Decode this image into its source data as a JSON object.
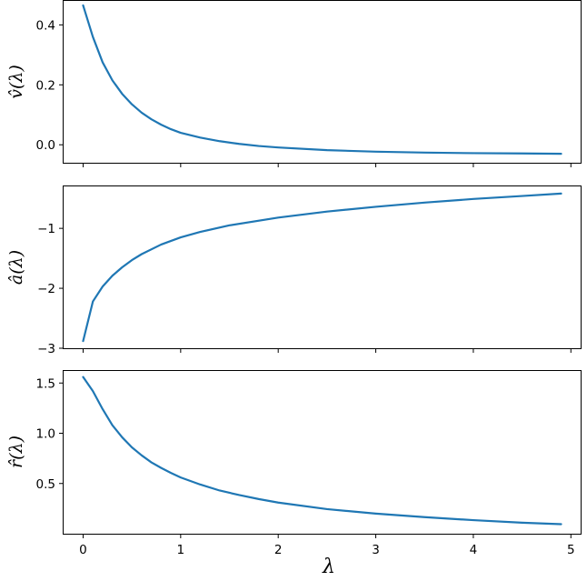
{
  "colors": {
    "series": "#1f77b4",
    "axes": "#000000",
    "background": "#ffffff"
  },
  "chart_data": [
    {
      "type": "line",
      "title": "",
      "xlabel": "",
      "ylabel": "v̂(λ)",
      "xlim": [
        -0.2,
        5.1
      ],
      "ylim": [
        -0.06,
        0.48
      ],
      "grid": false,
      "xticks": [
        0,
        1,
        2,
        3,
        4,
        5
      ],
      "xtick_labels": [],
      "yticks": [
        0.0,
        0.2,
        0.4
      ],
      "ytick_labels": [
        "0.0",
        "0.2",
        "0.4"
      ],
      "series": [
        {
          "x": [
            0,
            0.1,
            0.2,
            0.3,
            0.4,
            0.5,
            0.6,
            0.7,
            0.8,
            0.9,
            1.0,
            1.2,
            1.4,
            1.6,
            1.8,
            2.0,
            2.5,
            3.0,
            3.5,
            4.0,
            4.5,
            4.9
          ],
          "values": [
            0.465,
            0.36,
            0.275,
            0.215,
            0.17,
            0.135,
            0.107,
            0.085,
            0.067,
            0.052,
            0.04,
            0.024,
            0.012,
            0.003,
            -0.004,
            -0.009,
            -0.018,
            -0.023,
            -0.026,
            -0.028,
            -0.029,
            -0.03
          ]
        }
      ]
    },
    {
      "type": "line",
      "title": "",
      "xlabel": "",
      "ylabel": "â(λ)",
      "xlim": [
        -0.2,
        5.1
      ],
      "ylim": [
        -3.0,
        -0.3
      ],
      "grid": false,
      "xticks": [
        0,
        1,
        2,
        3,
        4,
        5
      ],
      "xtick_labels": [],
      "yticks": [
        -3,
        -2,
        -1
      ],
      "ytick_labels": [
        "−3",
        "−2",
        "−1"
      ],
      "series": [
        {
          "x": [
            0,
            0.1,
            0.2,
            0.3,
            0.4,
            0.5,
            0.6,
            0.8,
            1.0,
            1.2,
            1.5,
            2.0,
            2.5,
            3.0,
            3.5,
            4.0,
            4.5,
            4.9
          ],
          "values": [
            -2.88,
            -2.22,
            -1.97,
            -1.79,
            -1.65,
            -1.53,
            -1.43,
            -1.27,
            -1.15,
            -1.06,
            -0.95,
            -0.82,
            -0.72,
            -0.64,
            -0.57,
            -0.51,
            -0.46,
            -0.42
          ]
        }
      ]
    },
    {
      "type": "line",
      "title": "",
      "xlabel": "λ",
      "ylabel": "r̂(λ)",
      "xlim": [
        -0.2,
        5.1
      ],
      "ylim": [
        0.0,
        1.62
      ],
      "grid": false,
      "xticks": [
        0,
        1,
        2,
        3,
        4,
        5
      ],
      "xtick_labels": [
        "0",
        "1",
        "2",
        "3",
        "4",
        "5"
      ],
      "yticks": [
        0.5,
        1.0,
        1.5
      ],
      "ytick_labels": [
        "0.5",
        "1.0",
        "1.5"
      ],
      "series": [
        {
          "x": [
            0,
            0.1,
            0.2,
            0.3,
            0.4,
            0.5,
            0.6,
            0.7,
            0.8,
            0.9,
            1.0,
            1.2,
            1.4,
            1.6,
            1.8,
            2.0,
            2.5,
            3.0,
            3.5,
            4.0,
            4.5,
            4.9
          ],
          "values": [
            1.56,
            1.42,
            1.24,
            1.08,
            0.96,
            0.86,
            0.78,
            0.71,
            0.655,
            0.605,
            0.56,
            0.49,
            0.43,
            0.385,
            0.345,
            0.31,
            0.245,
            0.2,
            0.165,
            0.135,
            0.11,
            0.095
          ]
        }
      ]
    }
  ]
}
